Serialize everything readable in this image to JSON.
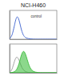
{
  "chart_data": [
    {
      "type": "line",
      "title": "NCI-H460",
      "annotation": "control",
      "x": [
        0,
        5,
        10,
        15,
        20,
        25,
        30,
        35,
        40,
        45,
        50,
        55,
        60,
        65,
        70,
        75,
        80,
        85,
        90,
        95,
        100
      ],
      "series": [
        {
          "color": "#3a5fcd",
          "values": [
            2,
            10,
            45,
            85,
            70,
            30,
            10,
            4,
            2,
            1,
            0,
            0,
            0,
            0,
            0,
            0,
            0,
            0,
            0,
            0,
            0
          ]
        }
      ],
      "xlim": [
        0,
        100
      ],
      "ylim": [
        0,
        100
      ],
      "tick_labels": false
    },
    {
      "type": "line",
      "x": [
        0,
        5,
        10,
        15,
        20,
        25,
        30,
        35,
        40,
        45,
        50,
        55,
        60,
        65,
        70,
        75,
        80,
        85,
        90,
        95,
        100
      ],
      "series": [
        {
          "color": "#9a9a9a",
          "values": [
            2,
            8,
            40,
            60,
            45,
            20,
            8,
            3,
            1,
            0,
            0,
            0,
            0,
            0,
            0,
            0,
            0,
            0,
            0,
            0,
            0
          ]
        },
        {
          "color": "#2eb82e",
          "type": "area",
          "values": [
            0,
            1,
            3,
            10,
            30,
            65,
            80,
            60,
            30,
            12,
            5,
            2,
            1,
            0,
            0,
            0,
            0,
            0,
            0,
            0,
            0
          ]
        }
      ],
      "xlim": [
        0,
        100
      ],
      "ylim": [
        0,
        100
      ],
      "tick_labels": false
    }
  ]
}
